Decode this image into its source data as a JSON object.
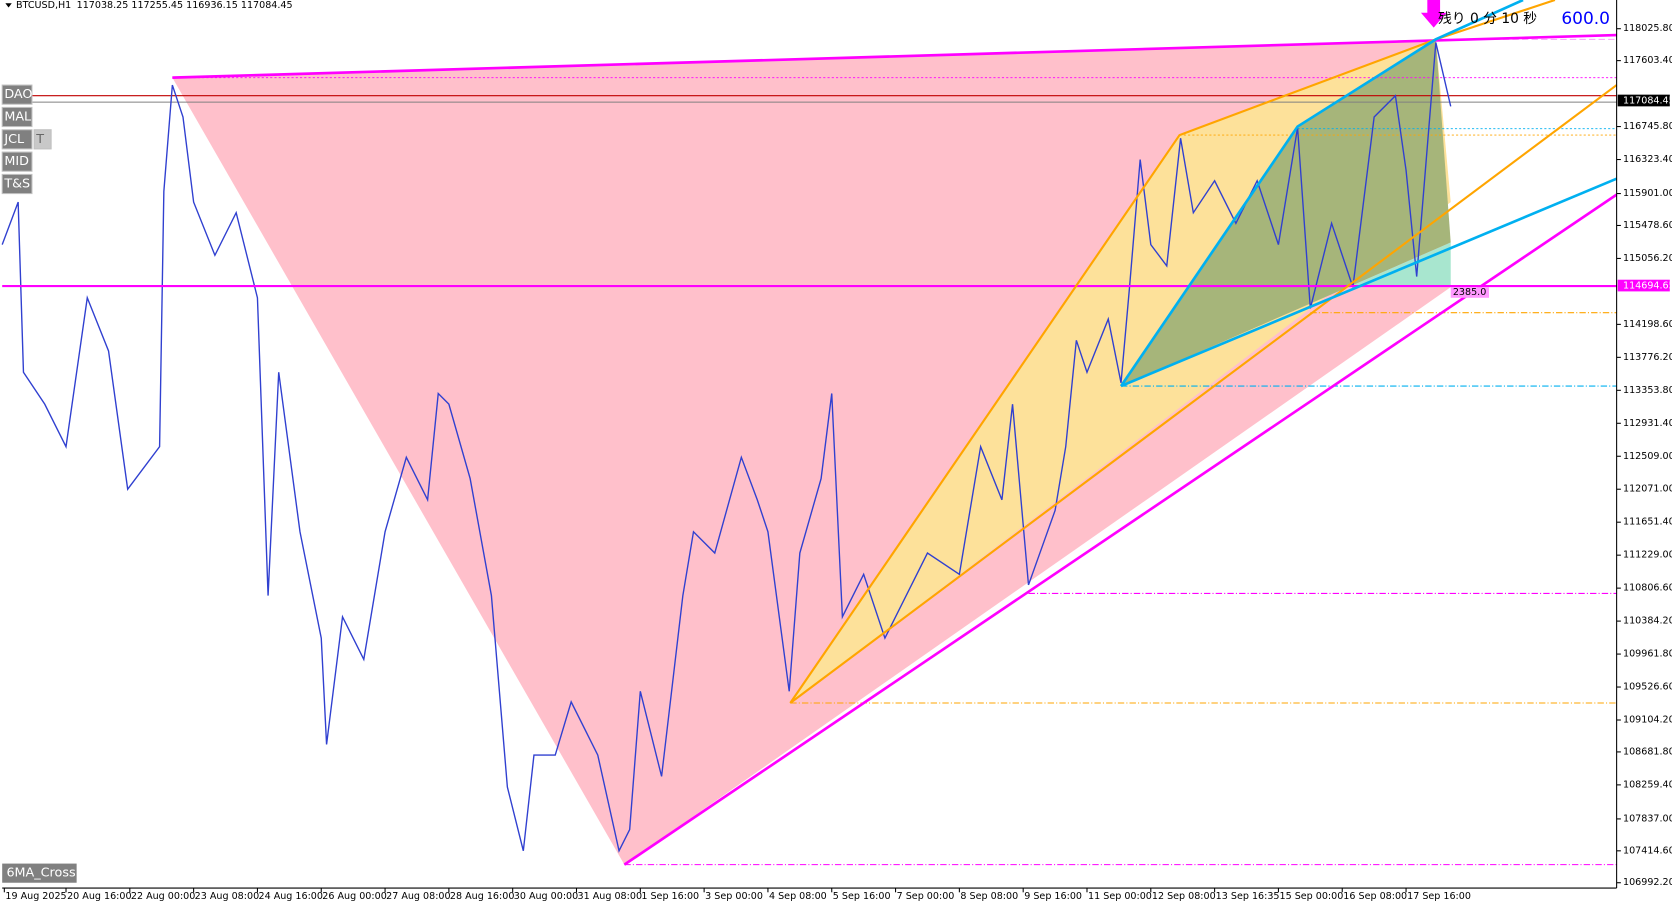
{
  "header": {
    "symbol": "BTCUSD,H1",
    "ohlc": "117038.25 117255.45 116936.15 117084.45"
  },
  "buttons": [
    "DAO",
    "MAL",
    "JCL",
    "T",
    "MID",
    "T&S"
  ],
  "indicator_label": "6MA_Cross",
  "timer": {
    "text": "残り 0 分 10 秒",
    "value": "600.0"
  },
  "range_label": "2385.0",
  "price_axis": [
    "118025.80",
    "117603.40",
    "116745.80",
    "116323.40",
    "115901.00",
    "115478.60",
    "115056.20",
    "114198.60",
    "113776.20",
    "113353.80",
    "112931.40",
    "112509.00",
    "112071.00",
    "111651.40",
    "111229.00",
    "110806.60",
    "110384.20",
    "109961.80",
    "109526.60",
    "109104.20",
    "108681.80",
    "108259.40",
    "107837.00",
    "107414.60",
    "106992.20"
  ],
  "price_markers": {
    "bid": "117084.45",
    "level": "114694.65"
  },
  "time_axis": [
    "19 Aug 2025",
    "20 Aug 16:00",
    "22 Aug 00:00",
    "23 Aug 08:00",
    "24 Aug 16:00",
    "26 Aug 00:00",
    "27 Aug 08:00",
    "28 Aug 16:00",
    "30 Aug 00:00",
    "31 Aug 08:00",
    "1 Sep 16:00",
    "3 Sep 00:00",
    "4 Sep 08:00",
    "5 Sep 16:00",
    "7 Sep 00:00",
    "8 Sep 08:00",
    "9 Sep 16:00",
    "11 Sep 00:00",
    "12 Sep 08:00",
    "13 Sep 16:35",
    "15 Sep 00:00",
    "16 Sep 08:00",
    "17 Sep 16:00"
  ]
}
